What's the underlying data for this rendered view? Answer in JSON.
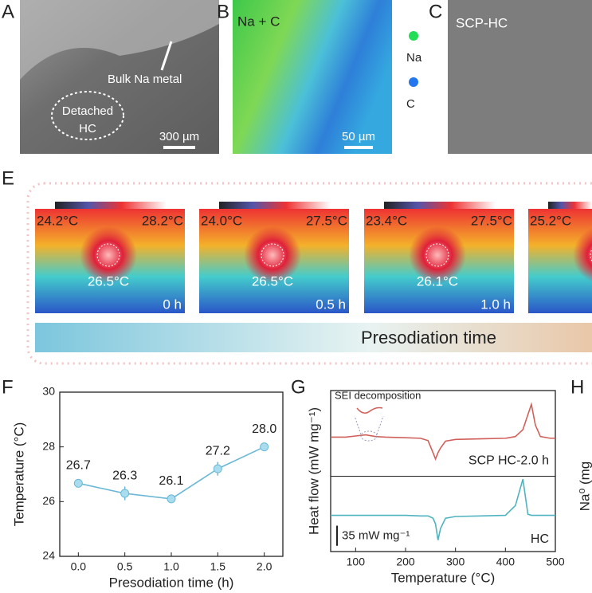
{
  "panels": {
    "A": {
      "label": "A",
      "arrow_label": "Bulk Na metal",
      "circle_label_1": "Detached",
      "circle_label_2": "HC",
      "scale_bar": "300 µm"
    },
    "B": {
      "label": "B",
      "title": "Na + C",
      "legend": [
        {
          "name": "Na",
          "color": "#22dd55"
        },
        {
          "name": "C",
          "color": "#2277ee"
        }
      ],
      "scale_bar": "50 µm"
    },
    "C": {
      "label": "C",
      "title": "SCP-HC"
    },
    "E": {
      "label": "E",
      "images": [
        {
          "min": "24.2°C",
          "max": "28.2°C",
          "center": "26.5°C",
          "time": "0 h"
        },
        {
          "min": "24.0°C",
          "max": "27.5°C",
          "center": "26.5°C",
          "time": "0.5 h"
        },
        {
          "min": "23.4°C",
          "max": "27.5°C",
          "center": "26.1°C",
          "time": "1.0 h"
        },
        {
          "min": "25.2°C"
        }
      ],
      "bar_label": "Presodiation time"
    },
    "F": {
      "label": "F"
    },
    "G": {
      "label": "G",
      "annotation": "SEI decomposition",
      "scale_bar": "35 mW mg⁻¹"
    },
    "H": {
      "label": "H",
      "ylabel": "Na⁰ (mg"
    }
  },
  "chart_data": [
    {
      "type": "line",
      "xlabel": "Presodiation time (h)",
      "ylabel": "Temperature (°C)",
      "x": [
        0,
        0.5,
        1,
        1.5,
        2
      ],
      "values": [
        26.67,
        26.3,
        26.1,
        27.2,
        28.0
      ],
      "value_labels": [
        "26.7",
        "26.3",
        "26.1",
        "27.2",
        "28.0"
      ],
      "errors": [
        0.15,
        0.25,
        0.05,
        0.25,
        0.05
      ],
      "color": "#6bb8d6",
      "xlim": [
        -0.2,
        2.2
      ],
      "ylim": [
        24,
        30
      ],
      "xticks": [
        {
          "value": 0,
          "label": "0.0"
        },
        {
          "value": 0.5,
          "label": "0.5"
        },
        {
          "value": 1,
          "label": "1.0"
        },
        {
          "value": 1.5,
          "label": "1.5"
        },
        {
          "value": 2,
          "label": "2.0"
        }
      ],
      "yticks": [
        24,
        26,
        28,
        30
      ]
    },
    {
      "type": "line",
      "xlabel": "Temperature (°C)",
      "ylabel": "Heat flow (mW mg⁻¹)",
      "x": [
        50,
        80,
        100,
        120,
        140,
        160,
        200,
        230,
        245,
        255,
        260,
        265,
        270,
        280,
        300,
        350,
        400,
        420,
        435,
        445,
        452,
        460,
        470,
        490,
        500
      ],
      "series": [
        {
          "name": "SCP HC-2.0 h",
          "color": "#d0605a",
          "values": [
            199,
            199,
            201,
            203,
            200,
            199,
            198,
            197,
            193,
            172,
            161,
            172,
            180,
            192,
            195,
            196,
            197,
            200,
            212,
            238,
            256,
            220,
            200,
            197,
            197
          ]
        },
        {
          "name": "HC",
          "color": "#4fb3c0",
          "values": [
            63,
            63,
            63,
            63,
            63,
            63,
            63,
            62,
            62,
            58,
            48,
            20,
            40,
            58,
            61,
            62,
            63,
            80,
            126,
            65,
            63,
            63,
            63,
            63,
            63
          ]
        }
      ],
      "xlim": [
        50,
        500
      ],
      "ylim": [
        0,
        280
      ],
      "xticks": [
        100,
        200,
        300,
        400,
        500
      ]
    }
  ]
}
